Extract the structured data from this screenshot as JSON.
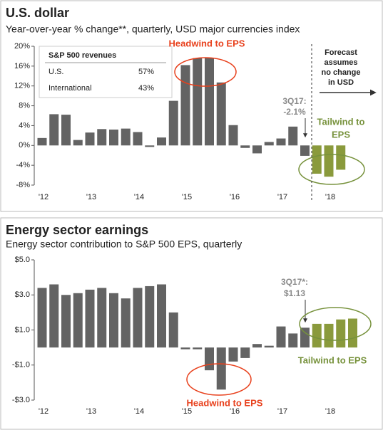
{
  "chart_data": [
    {
      "type": "bar",
      "title": "U.S. dollar",
      "subtitle": "Year-over-year % change**, quarterly, USD major currencies index",
      "categories": [
        "'12",
        null,
        null,
        null,
        "'13",
        null,
        null,
        null,
        "'14",
        null,
        null,
        null,
        "'15",
        null,
        null,
        null,
        "'16",
        null,
        null,
        null,
        "'17",
        null,
        null,
        null,
        "'18",
        null
      ],
      "values": [
        1.5,
        6.3,
        6.2,
        1.1,
        2.6,
        3.3,
        3.2,
        3.4,
        2.7,
        -0.3,
        1.6,
        9.0,
        16.2,
        17.6,
        17.7,
        12.7,
        4.1,
        -0.5,
        -1.6,
        0.7,
        1.4,
        3.8,
        -2.1,
        -5.7,
        -6.3,
        -4.9
      ],
      "colors": [
        "#636363",
        "#636363",
        "#636363",
        "#636363",
        "#636363",
        "#636363",
        "#636363",
        "#636363",
        "#636363",
        "#636363",
        "#636363",
        "#636363",
        "#636363",
        "#636363",
        "#636363",
        "#636363",
        "#636363",
        "#636363",
        "#636363",
        "#636363",
        "#636363",
        "#636363",
        "#636363",
        "#8a9a3c",
        "#8a9a3c",
        "#8a9a3c"
      ],
      "ylim": [
        -8,
        20
      ],
      "yticks": [
        {
          "value": 20,
          "label": "20%"
        },
        {
          "value": 16,
          "label": "16%"
        },
        {
          "value": 12,
          "label": "12%"
        },
        {
          "value": 8,
          "label": "8%"
        },
        {
          "value": 4,
          "label": "4%"
        },
        {
          "value": 0,
          "label": "0%"
        },
        {
          "value": -4,
          "label": "-4%"
        },
        {
          "value": -8,
          "label": "-8%"
        }
      ],
      "inset_table": {
        "title": "S&P 500 revenues",
        "rows": [
          [
            "U.S.",
            "57%"
          ],
          [
            "International",
            "43%"
          ]
        ]
      },
      "annotations": {
        "headwind": "Headwind to EPS",
        "tailwind": [
          "Tailwind to",
          "EPS"
        ],
        "latest": [
          "3Q17:",
          "-2.1%"
        ],
        "forecast": [
          "Forecast",
          "assumes",
          "no change",
          "in USD"
        ]
      }
    },
    {
      "type": "bar",
      "title": "Energy sector earnings",
      "subtitle": "Energy sector contribution to S&P 500 EPS, quarterly",
      "categories": [
        "'12",
        null,
        null,
        null,
        "'13",
        null,
        null,
        null,
        "'14",
        null,
        null,
        null,
        "'15",
        null,
        null,
        null,
        "'16",
        null,
        null,
        null,
        "'17",
        null,
        null,
        null,
        "'18",
        null,
        null
      ],
      "values": [
        3.4,
        3.6,
        3.0,
        3.1,
        3.3,
        3.4,
        3.1,
        2.8,
        3.4,
        3.5,
        3.6,
        2.0,
        -0.1,
        -0.1,
        -1.3,
        -2.4,
        -0.8,
        -0.6,
        0.2,
        0.1,
        1.2,
        0.8,
        1.13,
        1.35,
        1.35,
        1.6,
        1.65
      ],
      "colors": [
        "#636363",
        "#636363",
        "#636363",
        "#636363",
        "#636363",
        "#636363",
        "#636363",
        "#636363",
        "#636363",
        "#636363",
        "#636363",
        "#636363",
        "#636363",
        "#636363",
        "#636363",
        "#636363",
        "#636363",
        "#636363",
        "#636363",
        "#636363",
        "#636363",
        "#636363",
        "#636363",
        "#8a9a3c",
        "#8a9a3c",
        "#8a9a3c",
        "#8a9a3c"
      ],
      "ylim": [
        -3,
        5
      ],
      "yticks": [
        {
          "value": 5,
          "label": "$5.0"
        },
        {
          "value": 3,
          "label": "$3.0"
        },
        {
          "value": 1,
          "label": "$1.0"
        },
        {
          "value": -1,
          "label": "-$1.0"
        },
        {
          "value": -3,
          "label": "-$3.0"
        }
      ],
      "annotations": {
        "latest": [
          "3Q17*:",
          "$1.13"
        ],
        "tailwind": "Tailwind to EPS",
        "headwind": "Headwind to EPS"
      }
    }
  ]
}
